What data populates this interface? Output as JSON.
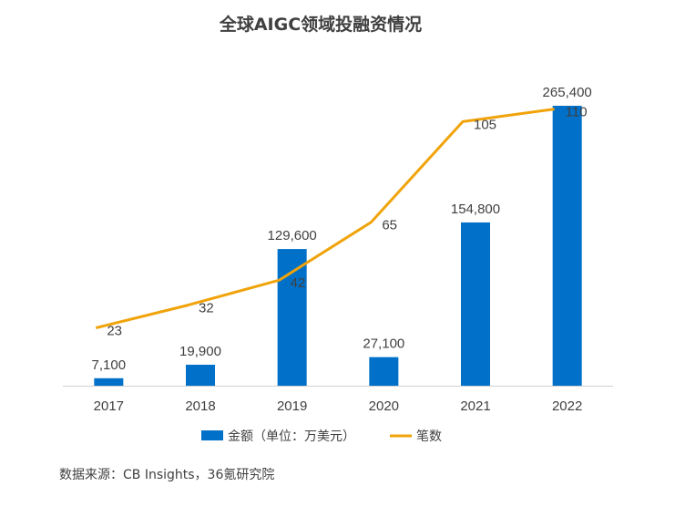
{
  "colors": {
    "bar": "#0070C8",
    "line": "#F0A30A",
    "axis": "#D0D0D0",
    "text": "#404040"
  },
  "chart_data": {
    "type": "bar",
    "title": "全球AIGC领域投融资情况",
    "categories": [
      "2017",
      "2018",
      "2019",
      "2020",
      "2021",
      "2022"
    ],
    "series": [
      {
        "name": "金额（单位：万美元）",
        "type": "bar",
        "axis": "primary",
        "values": [
          7100,
          19900,
          129600,
          27100,
          154800,
          265400
        ],
        "labels": [
          "7,100",
          "19,900",
          "129,600",
          "27,100",
          "154,800",
          "265,400"
        ]
      },
      {
        "name": "笔数",
        "type": "line",
        "axis": "secondary",
        "values": [
          23,
          32,
          42,
          65,
          105,
          110
        ],
        "labels": [
          "23",
          "32",
          "42",
          "65",
          "105",
          "110"
        ]
      }
    ],
    "ylim": [
      0,
      300000
    ],
    "y2lim": [
      0,
      120
    ],
    "grid": false,
    "legend": "bottom",
    "source": "数据来源：CB Insights，36氪研究院"
  }
}
